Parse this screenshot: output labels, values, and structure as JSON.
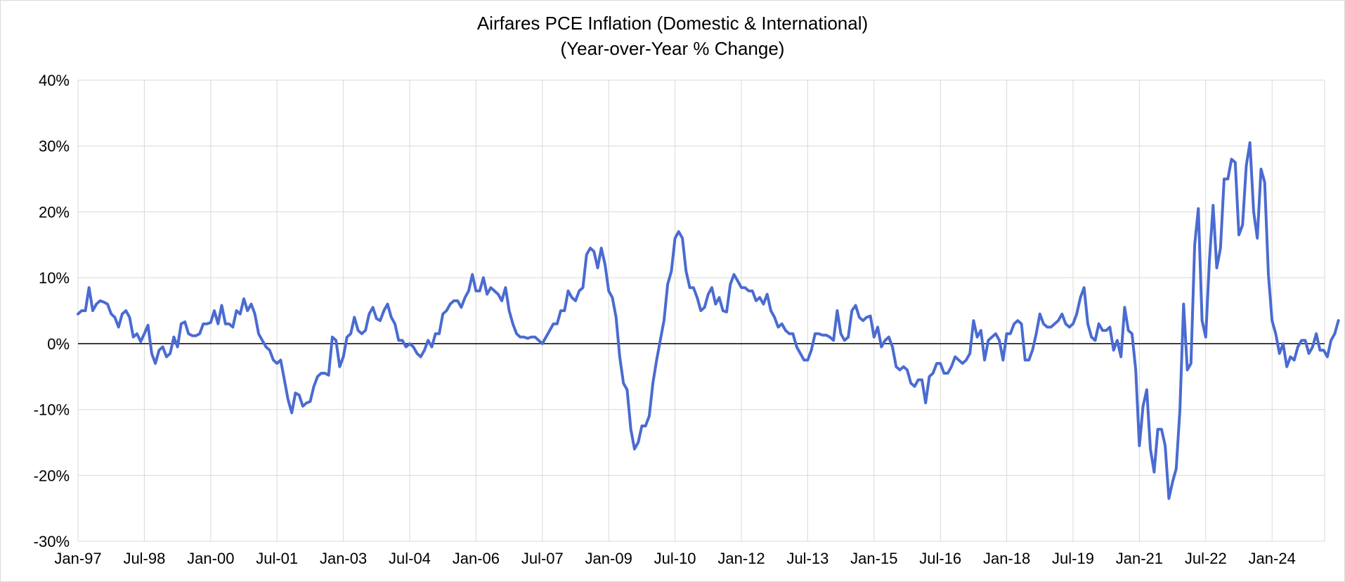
{
  "chart_data": {
    "type": "line",
    "title": "Airfares PCE Inflation (Domestic & International)",
    "subtitle": "(Year-over-Year % Change)",
    "xlabel": "",
    "ylabel": "",
    "ylim": [
      -30,
      40
    ],
    "yticks": [
      "40%",
      "30%",
      "20%",
      "10%",
      "0%",
      "-10%",
      "-20%",
      "-30%"
    ],
    "ytick_values": [
      40,
      30,
      20,
      10,
      0,
      -10,
      -20,
      -30
    ],
    "xticks": [
      "Jan-97",
      "Jul-98",
      "Jan-00",
      "Jul-01",
      "Jan-03",
      "Jul-04",
      "Jan-06",
      "Jul-07",
      "Jan-09",
      "Jul-10",
      "Jan-12",
      "Jul-13",
      "Jan-15",
      "Jul-16",
      "Jan-18",
      "Jul-19",
      "Jan-21",
      "Jul-22",
      "Jan-24"
    ],
    "grid": "vertical and horizontal",
    "line_color": "#4a6bd1",
    "zero_line_color": "#000000",
    "series": [
      {
        "name": "",
        "x_start": "1997-01",
        "frequency": "monthly",
        "values": [
          4.5,
          5.0,
          5.0,
          8.5,
          5.0,
          6.0,
          6.5,
          6.3,
          6.0,
          4.5,
          4.0,
          2.5,
          4.5,
          5.0,
          4.0,
          1.0,
          1.5,
          0.3,
          1.5,
          2.8,
          -1.5,
          -3.0,
          -1.0,
          -0.5,
          -2.0,
          -1.5,
          1.0,
          -0.5,
          3.0,
          3.3,
          1.5,
          1.2,
          1.2,
          1.5,
          3.0,
          3.0,
          3.2,
          5.0,
          3.0,
          5.8,
          3.0,
          3.0,
          2.5,
          5.0,
          4.5,
          6.8,
          5.0,
          6.0,
          4.5,
          1.5,
          0.5,
          -0.5,
          -1.0,
          -2.5,
          -3.0,
          -2.5,
          -5.5,
          -8.5,
          -10.5,
          -7.5,
          -7.8,
          -9.5,
          -9.0,
          -8.8,
          -6.5,
          -5.0,
          -4.5,
          -4.5,
          -4.8,
          1.0,
          0.5,
          -3.5,
          -2.0,
          1.0,
          1.5,
          4.0,
          2.0,
          1.5,
          2.0,
          4.5,
          5.5,
          3.8,
          3.5,
          5.0,
          6.0,
          4.0,
          3.0,
          0.5,
          0.5,
          -0.5,
          0.0,
          -0.5,
          -1.5,
          -2.0,
          -1.0,
          0.5,
          -0.5,
          1.5,
          1.5,
          4.5,
          5.0,
          6.0,
          6.5,
          6.5,
          5.5,
          7.0,
          8.0,
          10.5,
          8.0,
          8.0,
          10.0,
          7.5,
          8.5,
          8.0,
          7.5,
          6.5,
          8.5,
          5.0,
          3.0,
          1.5,
          1.0,
          1.0,
          0.8,
          1.0,
          1.0,
          0.5,
          0.0,
          1.0,
          2.0,
          3.0,
          3.0,
          5.0,
          5.0,
          8.0,
          7.0,
          6.5,
          8.0,
          8.5,
          13.5,
          14.5,
          14.0,
          11.5,
          14.5,
          12.0,
          8.0,
          7.0,
          4.0,
          -2.0,
          -6.0,
          -7.0,
          -13.0,
          -16.0,
          -15.0,
          -12.5,
          -12.5,
          -11.0,
          -6.0,
          -2.5,
          0.5,
          3.5,
          9.0,
          11.0,
          16.0,
          17.0,
          16.0,
          11.0,
          8.5,
          8.5,
          7.0,
          5.0,
          5.5,
          7.5,
          8.5,
          6.0,
          7.0,
          5.0,
          4.8,
          9.0,
          10.5,
          9.5,
          8.5,
          8.5,
          8.0,
          8.0,
          6.5,
          7.0,
          6.0,
          7.5,
          5.0,
          4.0,
          2.5,
          3.0,
          2.0,
          1.5,
          1.5,
          -0.5,
          -1.5,
          -2.5,
          -2.5,
          -1.0,
          1.5,
          1.5,
          1.3,
          1.3,
          1.0,
          0.5,
          5.0,
          1.5,
          0.5,
          1.0,
          5.0,
          5.8,
          4.0,
          3.5,
          4.0,
          4.2,
          1.0,
          2.5,
          -0.5,
          0.5,
          1.0,
          -0.5,
          -3.5,
          -4.0,
          -3.5,
          -4.0,
          -6.0,
          -6.5,
          -5.5,
          -5.5,
          -9.0,
          -5.0,
          -4.5,
          -3.0,
          -3.0,
          -4.5,
          -4.5,
          -3.5,
          -2.0,
          -2.5,
          -3.0,
          -2.5,
          -1.5,
          3.5,
          1.0,
          2.0,
          -2.5,
          0.5,
          1.0,
          1.5,
          0.5,
          -2.5,
          1.5,
          1.5,
          3.0,
          3.5,
          3.0,
          -2.5,
          -2.5,
          -1.0,
          1.5,
          4.5,
          3.0,
          2.5,
          2.5,
          3.0,
          3.5,
          4.5,
          3.0,
          2.5,
          3.0,
          4.5,
          7.0,
          8.5,
          3.0,
          1.0,
          0.5,
          3.0,
          2.0,
          2.0,
          2.5,
          -1.0,
          0.5,
          -2.0,
          5.5,
          2.0,
          1.5,
          -4.0,
          -15.5,
          -9.5,
          -7.0,
          -16.0,
          -19.5,
          -13.0,
          -13.0,
          -15.5,
          -23.5,
          -21.0,
          -19.0,
          -10.0,
          6.0,
          -4.0,
          -3.0,
          15.0,
          20.5,
          3.5,
          1.0,
          12.5,
          21.0,
          11.5,
          14.5,
          25.0,
          25.0,
          28.0,
          27.5,
          16.5,
          18.0,
          27.0,
          30.5,
          20.0,
          16.0,
          26.5,
          24.5,
          10.5,
          3.5,
          1.5,
          -1.5,
          0.0,
          -3.5,
          -2.0,
          -2.5,
          -0.5,
          0.5,
          0.5,
          -1.5,
          -0.5,
          1.5,
          -1.0,
          -1.0,
          -2.0,
          0.5,
          1.5,
          3.5
        ]
      }
    ]
  }
}
